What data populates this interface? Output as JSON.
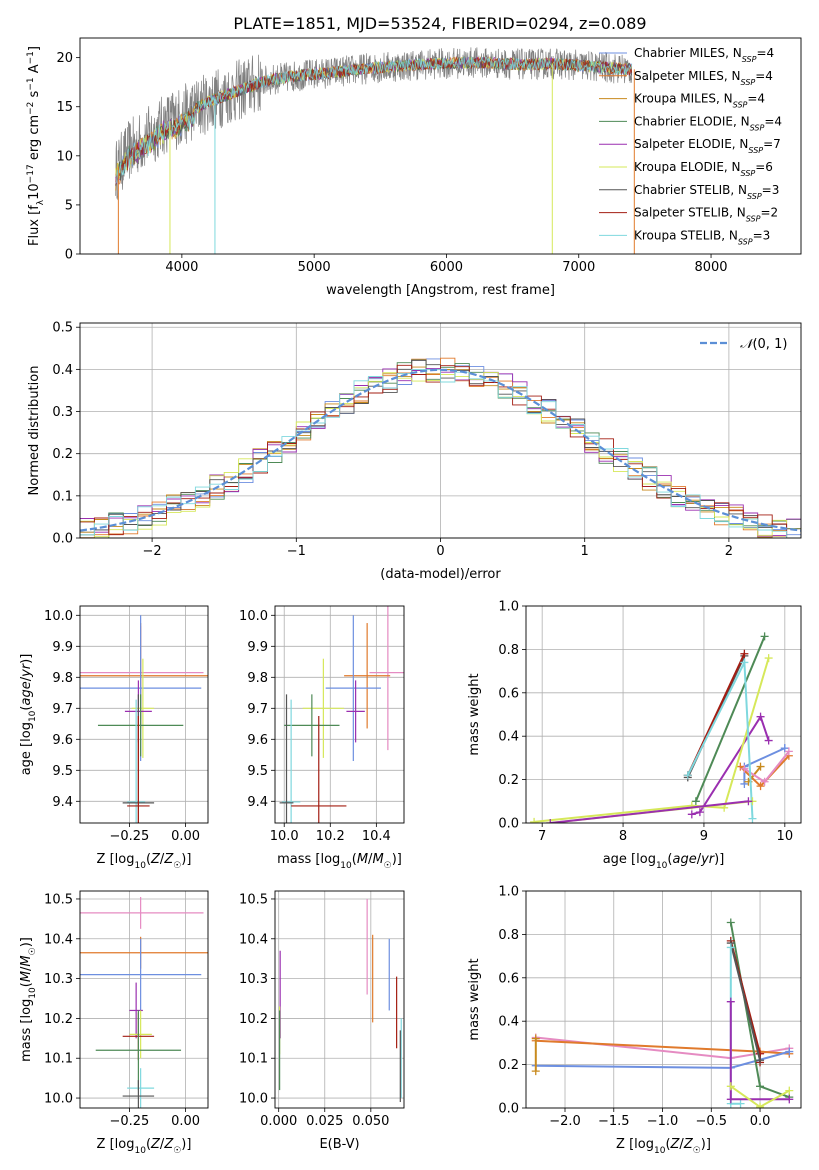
{
  "figure_title": "PLATE=1851, MJD=53524, FIBERID=0294, z=0.089",
  "colors": {
    "chabrier_miles": "#6d8fe0",
    "salpeter_miles": "#e07a2c",
    "kroupa_miles": "#c88a1e",
    "chabrier_elodie": "#4e8a56",
    "salpeter_elodie": "#9a2fb0",
    "kroupa_elodie": "#d6e85a",
    "chabrier_stelib": "#555555",
    "salpeter_stelib": "#a31d12",
    "kroupa_stelib": "#7fd8de",
    "pink": "#e58bc2",
    "gaussian": "#5b8fd6",
    "data": "#808080"
  },
  "chart_data": [
    {
      "id": "spectrum",
      "type": "line",
      "xlabel": "wavelength [Angstrom, rest frame]",
      "ylabel": "Flux [f_λ 10^-17 erg cm^-2 s^-1 A^-1]",
      "xlim": [
        3230,
        8680
      ],
      "ylim": [
        0,
        22
      ],
      "xticks": [
        4000,
        5000,
        6000,
        7000,
        8000
      ],
      "yticks": [
        0,
        5,
        10,
        15,
        20
      ],
      "grid": false,
      "legend_position": "right",
      "legend": [
        {
          "label": "Chabrier MILES, N",
          "ssp": "SSP",
          "n": "=4",
          "color": "chabrier_miles"
        },
        {
          "label": "Salpeter MILES, N",
          "ssp": "SSP",
          "n": "=4",
          "color": "salpeter_miles"
        },
        {
          "label": "Kroupa MILES, N",
          "ssp": "SSP",
          "n": "=4",
          "color": "kroupa_miles"
        },
        {
          "label": "Chabrier ELODIE, N",
          "ssp": "SSP",
          "n": "=4",
          "color": "chabrier_elodie"
        },
        {
          "label": "Salpeter ELODIE, N",
          "ssp": "SSP",
          "n": "=7",
          "color": "salpeter_elodie"
        },
        {
          "label": "Kroupa ELODIE, N",
          "ssp": "SSP",
          "n": "=6",
          "color": "kroupa_elodie"
        },
        {
          "label": "Chabrier STELIB, N",
          "ssp": "SSP",
          "n": "=3",
          "color": "chabrier_stelib"
        },
        {
          "label": "Salpeter STELIB, N",
          "ssp": "SSP",
          "n": "=2",
          "color": "salpeter_stelib"
        },
        {
          "label": "Kroupa STELIB, N",
          "ssp": "SSP",
          "n": "=3",
          "color": "kroupa_stelib"
        }
      ],
      "continuum": {
        "x": [
          3500,
          3600,
          3700,
          3800,
          3900,
          4000,
          4100,
          4200,
          4300,
          4400,
          4500,
          4600,
          4700,
          4800,
          4900,
          5000,
          5200,
          5400,
          5600,
          5800,
          6000,
          6200,
          6400,
          6600,
          6800,
          7000,
          7200,
          7400
        ],
        "y": [
          8.5,
          10.5,
          11.5,
          12.5,
          13.5,
          14.0,
          14.8,
          15.5,
          16.0,
          16.5,
          17.0,
          17.5,
          17.8,
          18.0,
          18.2,
          18.3,
          18.6,
          18.9,
          19.1,
          19.3,
          19.4,
          19.5,
          19.4,
          19.3,
          19.4,
          19.2,
          19.0,
          18.8
        ]
      },
      "dips": [
        {
          "x": 3520,
          "model": "salpeter_miles",
          "to": 0
        },
        {
          "x": 3910,
          "model": "kroupa_elodie",
          "to": 0
        },
        {
          "x": 4250,
          "model": "kroupa_stelib",
          "to": 0
        },
        {
          "x": 6800,
          "model": "kroupa_elodie",
          "to": 0
        },
        {
          "x": 7420,
          "model": "salpeter_miles",
          "to": 0
        }
      ]
    },
    {
      "id": "residuals",
      "type": "line",
      "xlabel": "(data-model)/error",
      "ylabel": "Normed distribution",
      "xlim": [
        -2.5,
        2.5
      ],
      "ylim": [
        0,
        0.51
      ],
      "xticks": [
        -2,
        -1,
        0,
        1,
        2
      ],
      "xtick_labels": [
        "−2",
        "−1",
        "0",
        "1",
        "2"
      ],
      "yticks": [
        0,
        0.1,
        0.2,
        0.3,
        0.4,
        0.5
      ],
      "ytick_labels": [
        "0.0",
        "0.1",
        "0.2",
        "0.3",
        "0.4",
        "0.5"
      ],
      "grid": true,
      "legend_position": "top-right",
      "legend_label": "(0, 1)",
      "legend_symbol": "𝒩",
      "gaussian": {
        "mean": 0,
        "sigma": 1
      }
    },
    {
      "id": "z_age",
      "type": "scatter",
      "xlabel": "Z [log10(Z/Z☉)]",
      "ylabel": "age [log10(age/yr)]",
      "xlim": [
        -0.47,
        0.1
      ],
      "ylim": [
        9.33,
        10.03
      ],
      "xticks": [
        -0.25,
        0.0
      ],
      "xtick_labels": [
        "−0.25",
        "0.00"
      ],
      "yticks": [
        9.4,
        9.5,
        9.6,
        9.7,
        9.8,
        9.9,
        10.0
      ],
      "ytick_labels": [
        "9.4",
        "9.5",
        "9.6",
        "9.7",
        "9.8",
        "9.9",
        "10.0"
      ],
      "grid": true,
      "points": [
        {
          "color": "pink",
          "x": -0.2,
          "xerr": 0.28,
          "y": 9.815,
          "yerr": 0.15
        },
        {
          "color": "salpeter_miles",
          "x": -0.2,
          "xerr": 0.3,
          "y": 9.805,
          "yerr": 0.17
        },
        {
          "color": "chabrier_miles",
          "x": -0.2,
          "xerr": 0.27,
          "y": 9.765,
          "yerr": 0.235
        },
        {
          "color": "kroupa_elodie",
          "x": -0.19,
          "xerr": 0.05,
          "y": 9.7,
          "yerr": 0.16
        },
        {
          "color": "salpeter_elodie",
          "x": -0.21,
          "xerr": 0.06,
          "y": 9.69,
          "yerr": 0.1
        },
        {
          "color": "chabrier_elodie",
          "x": -0.2,
          "xerr": 0.19,
          "y": 9.645,
          "yerr": 0.1
        },
        {
          "color": "kroupa_stelib",
          "x": -0.22,
          "xerr": 0.04,
          "y": 9.398,
          "yerr": 0.33
        },
        {
          "color": "chabrier_stelib",
          "x": -0.21,
          "xerr": 0.07,
          "y": 9.395,
          "yerr": 0.35
        },
        {
          "color": "salpeter_stelib",
          "x": -0.21,
          "xerr": 0.05,
          "y": 9.385,
          "yerr": 0.29
        }
      ]
    },
    {
      "id": "mass_age",
      "type": "scatter",
      "xlabel": "mass [log10(M/M☉)]",
      "xlim": [
        9.96,
        10.52
      ],
      "ylim": [
        9.33,
        10.03
      ],
      "xticks": [
        10.0,
        10.2,
        10.4
      ],
      "xtick_labels": [
        "10.0",
        "10.2",
        "10.4"
      ],
      "yticks": [
        9.4,
        9.5,
        9.6,
        9.7,
        9.8,
        9.9,
        10.0
      ],
      "ytick_labels": [
        "9.4",
        "9.5",
        "9.6",
        "9.7",
        "9.8",
        "9.9",
        "10.0"
      ],
      "grid": true,
      "points": [
        {
          "color": "pink",
          "x": 10.45,
          "xerr": 0.08,
          "y": 9.815,
          "yerr": 0.25
        },
        {
          "color": "salpeter_miles",
          "x": 10.36,
          "xerr": 0.1,
          "y": 9.805,
          "yerr": 0.17
        },
        {
          "color": "chabrier_miles",
          "x": 10.3,
          "xerr": 0.12,
          "y": 9.765,
          "yerr": 0.235
        },
        {
          "color": "kroupa_elodie",
          "x": 10.17,
          "xerr": 0.09,
          "y": 9.7,
          "yerr": 0.16
        },
        {
          "color": "salpeter_elodie",
          "x": 10.31,
          "xerr": 0.04,
          "y": 9.69,
          "yerr": 0.1
        },
        {
          "color": "chabrier_elodie",
          "x": 10.12,
          "xerr": 0.12,
          "y": 9.645,
          "yerr": 0.1
        },
        {
          "color": "kroupa_stelib",
          "x": 10.03,
          "xerr": 0.04,
          "y": 9.398,
          "yerr": 0.33
        },
        {
          "color": "chabrier_stelib",
          "x": 10.01,
          "xerr": 0.03,
          "y": 9.395,
          "yerr": 0.35
        },
        {
          "color": "salpeter_stelib",
          "x": 10.15,
          "xerr": 0.12,
          "y": 9.385,
          "yerr": 0.29
        }
      ]
    },
    {
      "id": "age_weight",
      "type": "line",
      "xlabel": "age  [log10(age/yr)]",
      "ylabel": "mass weight",
      "xlim": [
        6.8,
        10.2
      ],
      "ylim": [
        0,
        1
      ],
      "xticks": [
        7,
        8,
        9,
        10
      ],
      "yticks": [
        0,
        0.2,
        0.4,
        0.6,
        0.8,
        1.0
      ],
      "ytick_labels": [
        "0.0",
        "0.2",
        "0.4",
        "0.6",
        "0.8",
        "1.0"
      ],
      "grid": true,
      "series": [
        {
          "color": "chabrier_miles",
          "x": [
            9.5,
            9.5,
            10.0,
            10.0
          ],
          "y": [
            0.18,
            0.26,
            0.345,
            0.345
          ]
        },
        {
          "color": "salpeter_miles",
          "x": [
            9.45,
            9.7,
            10.05
          ],
          "y": [
            0.26,
            0.17,
            0.31
          ]
        },
        {
          "color": "kroupa_miles",
          "x": [
            9.55,
            9.7
          ],
          "y": [
            0.19,
            0.26
          ]
        },
        {
          "color": "pink",
          "x": [
            9.5,
            9.75,
            10.05
          ],
          "y": [
            0.25,
            0.19,
            0.33
          ]
        },
        {
          "color": "chabrier_elodie",
          "x": [
            8.9,
            9.75
          ],
          "y": [
            0.1,
            0.86
          ]
        },
        {
          "color": "salpeter_elodie",
          "x": [
            8.85,
            8.95,
            9.7,
            9.8
          ],
          "y": [
            0.04,
            0.05,
            0.49,
            0.38
          ]
        },
        {
          "color": "kroupa_elodie",
          "x": [
            6.9,
            8.85,
            9.25,
            9.8
          ],
          "y": [
            0.005,
            0.08,
            0.07,
            0.76
          ]
        },
        {
          "color": "chabrier_stelib",
          "x": [
            8.8,
            9.5
          ],
          "y": [
            0.21,
            0.77
          ]
        },
        {
          "color": "salpeter_stelib",
          "x": [
            8.8,
            9.5
          ],
          "y": [
            0.22,
            0.78
          ]
        },
        {
          "color": "kroupa_stelib",
          "x": [
            8.8,
            9.5,
            9.6
          ],
          "y": [
            0.22,
            0.74,
            0.02
          ]
        },
        {
          "color": "kroupa_elodie",
          "x": [
            7.1,
            9.6
          ],
          "y": [
            0.0,
            0.1
          ]
        },
        {
          "color": "salpeter_elodie",
          "x": [
            7.1,
            9.55
          ],
          "y": [
            0.0,
            0.1
          ]
        }
      ]
    },
    {
      "id": "z_mass",
      "type": "scatter",
      "xlabel": "Z [log10(Z/Z☉)]",
      "ylabel": "mass [log10(M/M☉)]",
      "xlim": [
        -0.47,
        0.1
      ],
      "ylim": [
        9.975,
        10.52
      ],
      "xticks": [
        -0.25,
        0.0
      ],
      "xtick_labels": [
        "−0.25",
        "0.00"
      ],
      "yticks": [
        10.0,
        10.1,
        10.2,
        10.3,
        10.4,
        10.5
      ],
      "ytick_labels": [
        "10.0",
        "10.1",
        "10.2",
        "10.3",
        "10.4",
        "10.5"
      ],
      "grid": true,
      "points": [
        {
          "color": "pink",
          "x": -0.2,
          "xerr": 0.28,
          "y": 10.465,
          "yerr": 0.04
        },
        {
          "color": "salpeter_miles",
          "x": -0.2,
          "xerr": 0.3,
          "y": 10.365,
          "yerr": 0.04
        },
        {
          "color": "chabrier_miles",
          "x": -0.2,
          "xerr": 0.27,
          "y": 10.31,
          "yerr": 0.09
        },
        {
          "color": "salpeter_elodie",
          "x": -0.22,
          "xerr": 0.03,
          "y": 10.22,
          "yerr": 0.07
        },
        {
          "color": "kroupa_elodie",
          "x": -0.2,
          "xerr": 0.05,
          "y": 10.16,
          "yerr": 0.06
        },
        {
          "color": "salpeter_stelib",
          "x": -0.21,
          "xerr": 0.07,
          "y": 10.155,
          "yerr": 0.06
        },
        {
          "color": "chabrier_elodie",
          "x": -0.21,
          "xerr": 0.19,
          "y": 10.12,
          "yerr": 0.1
        },
        {
          "color": "kroupa_stelib",
          "x": -0.2,
          "xerr": 0.06,
          "y": 10.025,
          "yerr": 0.05
        },
        {
          "color": "chabrier_stelib",
          "x": -0.21,
          "xerr": 0.07,
          "y": 10.005,
          "yerr": 0.04
        }
      ]
    },
    {
      "id": "ebv_mass",
      "type": "scatter",
      "xlabel": "E(B-V)",
      "xlim": [
        -0.002,
        0.068
      ],
      "ylim": [
        9.975,
        10.52
      ],
      "xticks": [
        0.0,
        0.025,
        0.05
      ],
      "xtick_labels": [
        "0.000",
        "0.025",
        "0.050"
      ],
      "yticks": [
        10.0,
        10.1,
        10.2,
        10.3,
        10.4,
        10.5
      ],
      "ytick_labels": [
        "10.0",
        "10.1",
        "10.2",
        "10.3",
        "10.4",
        "10.5"
      ],
      "grid": true,
      "points": [
        {
          "color": "pink",
          "x": 0.048,
          "y": 10.38,
          "yerr": 0.12
        },
        {
          "color": "chabrier_miles",
          "x": 0.06,
          "y": 10.31,
          "yerr": 0.09
        },
        {
          "color": "salpeter_miles",
          "x": 0.051,
          "y": 10.3,
          "yerr": 0.11
        },
        {
          "color": "salpeter_stelib",
          "x": 0.064,
          "y": 10.215,
          "yerr": 0.09
        },
        {
          "color": "salpeter_elodie",
          "x": 0.0008,
          "y": 10.26,
          "yerr": 0.11
        },
        {
          "color": "kroupa_elodie",
          "x": 0.0005,
          "y": 10.17,
          "yerr": 0.06
        },
        {
          "color": "chabrier_elodie",
          "x": 0.0005,
          "y": 10.12,
          "yerr": 0.1
        },
        {
          "color": "kroupa_stelib",
          "x": 0.0665,
          "y": 10.1,
          "yerr": 0.1
        },
        {
          "color": "chabrier_stelib",
          "x": 0.066,
          "y": 10.08,
          "yerr": 0.09
        }
      ]
    },
    {
      "id": "z_weight",
      "type": "line",
      "xlabel": "Z [log10(Z/Z☉)]",
      "ylabel": "mass weight",
      "xlim": [
        -2.4,
        0.42
      ],
      "ylim": [
        0,
        1
      ],
      "xticks": [
        -2.0,
        -1.5,
        -1.0,
        -0.5,
        0.0
      ],
      "xtick_labels": [
        "−2.0",
        "−1.5",
        "−1.0",
        "−0.5",
        "0.0"
      ],
      "yticks": [
        0,
        0.2,
        0.4,
        0.6,
        0.8,
        1.0
      ],
      "ytick_labels": [
        "0.0",
        "0.2",
        "0.4",
        "0.6",
        "0.8",
        "1.0"
      ],
      "grid": true,
      "series": [
        {
          "color": "pink",
          "x": [
            -2.3,
            -0.3,
            0.3
          ],
          "y": [
            0.325,
            0.23,
            0.275
          ]
        },
        {
          "color": "salpeter_miles",
          "x": [
            -2.3,
            0.0,
            0.3
          ],
          "y": [
            0.31,
            0.26,
            0.25
          ]
        },
        {
          "color": "chabrier_miles",
          "x": [
            -2.3,
            -0.3,
            0.3
          ],
          "y": [
            0.195,
            0.185,
            0.26
          ]
        },
        {
          "color": "kroupa_miles",
          "x": [
            -2.3,
            -2.3
          ],
          "y": [
            0.17,
            0.32
          ]
        },
        {
          "color": "chabrier_elodie",
          "x": [
            -0.3,
            0.0,
            0.3
          ],
          "y": [
            0.855,
            0.1,
            0.05
          ]
        },
        {
          "color": "salpeter_stelib",
          "x": [
            -0.3,
            0.0,
            0.0
          ],
          "y": [
            0.77,
            0.25,
            0.21
          ]
        },
        {
          "color": "chabrier_stelib",
          "x": [
            -0.3,
            0.0
          ],
          "y": [
            0.76,
            0.22
          ]
        },
        {
          "color": "kroupa_stelib",
          "x": [
            -0.3,
            -0.3,
            -0.2
          ],
          "y": [
            0.74,
            0.02,
            0.02
          ]
        },
        {
          "color": "salpeter_elodie",
          "x": [
            -0.3,
            -0.3,
            0.3
          ],
          "y": [
            0.49,
            0.04,
            0.04
          ]
        },
        {
          "color": "kroupa_elodie",
          "x": [
            -0.3,
            0.0,
            0.3
          ],
          "y": [
            0.1,
            0.005,
            0.08
          ]
        }
      ]
    }
  ]
}
